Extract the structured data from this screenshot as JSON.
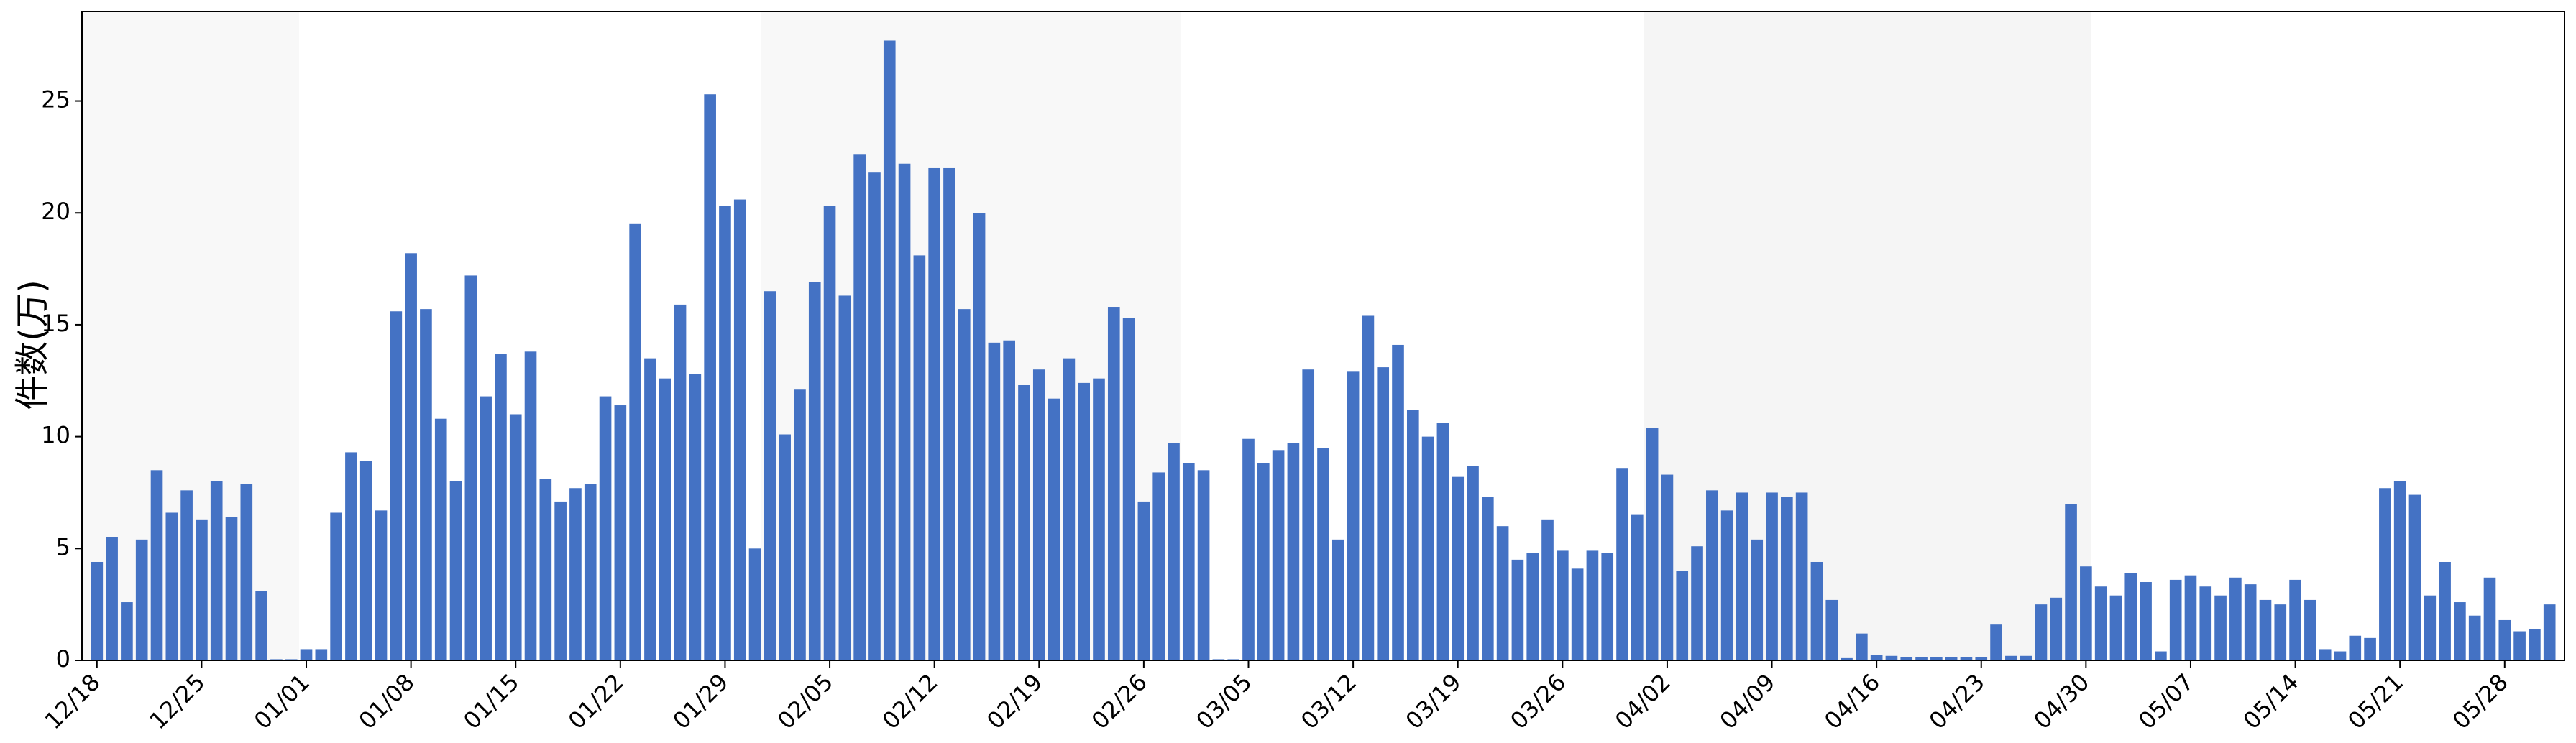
{
  "chart_data": {
    "type": "bar",
    "y_label": "件数(万)",
    "color": "#4472c4",
    "categories": [
      "12/18",
      null,
      null,
      null,
      null,
      null,
      null,
      "12/25",
      null,
      null,
      null,
      null,
      null,
      null,
      "01/01",
      null,
      null,
      null,
      null,
      null,
      null,
      "01/08",
      null,
      null,
      null,
      null,
      null,
      null,
      "01/15",
      null,
      null,
      null,
      null,
      null,
      null,
      "01/22",
      null,
      null,
      null,
      null,
      null,
      null,
      "01/29",
      null,
      null,
      null,
      null,
      null,
      null,
      "02/05",
      null,
      null,
      null,
      null,
      null,
      null,
      "02/12",
      null,
      null,
      null,
      null,
      null,
      null,
      "02/19",
      null,
      null,
      null,
      null,
      null,
      null,
      "02/26",
      null,
      null,
      null,
      null,
      null,
      null,
      "03/05",
      null,
      null,
      null,
      null,
      null,
      null,
      "03/12",
      null,
      null,
      null,
      null,
      null,
      null,
      "03/19",
      null,
      null,
      null,
      null,
      null,
      null,
      "03/26",
      null,
      null,
      null,
      null,
      null,
      null,
      "04/02",
      null,
      null,
      null,
      null,
      null,
      null,
      "04/09",
      null,
      null,
      null,
      null,
      null,
      null,
      "04/16",
      null,
      null,
      null,
      null,
      null,
      null,
      "04/23",
      null,
      null,
      null,
      null,
      null,
      null,
      "04/30",
      null,
      null,
      null,
      null,
      null,
      null,
      "05/07",
      null,
      null,
      null,
      null,
      null,
      null,
      "05/14",
      null,
      null,
      null,
      null,
      null,
      null,
      "05/21",
      null,
      null,
      null,
      null,
      null,
      null,
      "05/28",
      null,
      null,
      null
    ],
    "values": [
      4.4,
      5.5,
      2.6,
      5.4,
      8.5,
      6.6,
      7.6,
      6.3,
      8.0,
      6.4,
      7.9,
      3.1,
      0.05,
      0.05,
      0.5,
      0.5,
      6.6,
      9.3,
      8.9,
      6.7,
      15.6,
      18.2,
      15.7,
      10.8,
      8.0,
      17.2,
      11.8,
      13.7,
      11.0,
      13.8,
      8.1,
      7.1,
      7.7,
      7.9,
      11.8,
      11.4,
      19.5,
      13.5,
      12.6,
      15.9,
      12.8,
      25.3,
      20.3,
      20.6,
      5.0,
      16.5,
      10.1,
      12.1,
      16.9,
      20.3,
      16.3,
      22.6,
      21.8,
      27.7,
      22.2,
      18.1,
      22.0,
      22.0,
      15.7,
      20.0,
      14.2,
      14.3,
      12.3,
      13.0,
      11.7,
      13.5,
      12.4,
      12.6,
      15.8,
      15.3,
      7.1,
      8.4,
      9.7,
      8.8,
      8.5,
      0.05,
      0.05,
      9.9,
      8.8,
      9.4,
      9.7,
      13.0,
      9.5,
      5.4,
      12.9,
      15.4,
      13.1,
      14.1,
      11.2,
      10.0,
      10.6,
      8.2,
      8.7,
      7.3,
      6.0,
      4.5,
      4.8,
      6.3,
      4.9,
      4.1,
      4.9,
      4.8,
      8.6,
      6.5,
      10.4,
      8.3,
      4.0,
      5.1,
      7.6,
      6.7,
      7.5,
      5.4,
      7.5,
      7.3,
      7.5,
      4.4,
      2.7,
      0.1,
      1.2,
      0.25,
      0.2,
      0.15,
      0.15,
      0.15,
      0.15,
      0.15,
      0.15,
      1.6,
      0.2,
      0.2,
      2.5,
      2.8,
      7.0,
      4.2,
      3.3,
      2.9,
      3.9,
      3.5,
      0.4,
      3.6,
      3.8,
      3.3,
      2.9,
      3.7,
      3.4,
      2.7,
      2.5,
      3.6,
      2.7,
      0.5,
      0.4,
      1.1,
      1.0,
      7.7,
      8.0,
      7.4,
      2.9,
      4.4,
      2.6,
      2.0,
      3.7,
      1.8,
      1.3,
      1.4,
      2.5
    ],
    "ylim": [
      0,
      29
    ],
    "yticks": [
      0,
      5,
      10,
      15,
      20,
      25
    ],
    "grid": false
  }
}
